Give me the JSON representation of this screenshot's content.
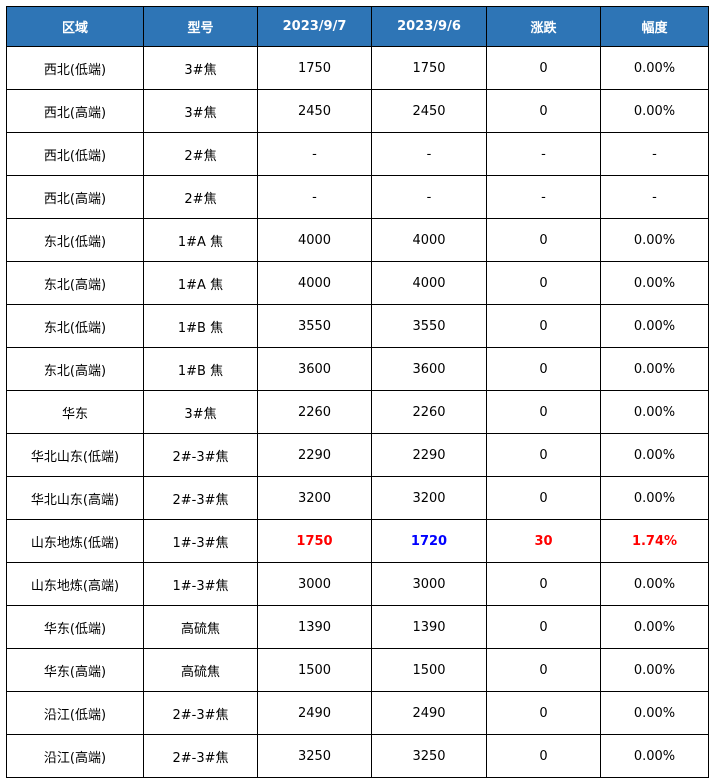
{
  "colors": {
    "header_bg": "#2E75B6",
    "up": "#ff0000",
    "prev": "#0000ff"
  },
  "headers": [
    "区域",
    "型号",
    "2023/9/7",
    "2023/9/6",
    "涨跌",
    "幅度"
  ],
  "rows": [
    {
      "cells": [
        "西北(低端)",
        "3#焦",
        "1750",
        "1750",
        "0",
        "0.00%"
      ]
    },
    {
      "cells": [
        "西北(高端)",
        "3#焦",
        "2450",
        "2450",
        "0",
        "0.00%"
      ]
    },
    {
      "cells": [
        "西北(低端)",
        "2#焦",
        "-",
        "-",
        "-",
        "-"
      ]
    },
    {
      "cells": [
        "西北(高端)",
        "2#焦",
        "-",
        "-",
        "-",
        "-"
      ]
    },
    {
      "cells": [
        "东北(低端)",
        "1#A 焦",
        "4000",
        "4000",
        "0",
        "0.00%"
      ]
    },
    {
      "cells": [
        "东北(高端)",
        "1#A 焦",
        "4000",
        "4000",
        "0",
        "0.00%"
      ]
    },
    {
      "cells": [
        "东北(低端)",
        "1#B 焦",
        "3550",
        "3550",
        "0",
        "0.00%"
      ]
    },
    {
      "cells": [
        "东北(高端)",
        "1#B 焦",
        "3600",
        "3600",
        "0",
        "0.00%"
      ]
    },
    {
      "cells": [
        "华东",
        "3#焦",
        "2260",
        "2260",
        "0",
        "0.00%"
      ]
    },
    {
      "cells": [
        "华北山东(低端)",
        "2#-3#焦",
        "2290",
        "2290",
        "0",
        "0.00%"
      ]
    },
    {
      "cells": [
        "华北山东(高端)",
        "2#-3#焦",
        "3200",
        "3200",
        "0",
        "0.00%"
      ]
    },
    {
      "cells": [
        "山东地炼(低端)",
        "1#-3#焦",
        "1750",
        "1720",
        "30",
        "1.74%"
      ],
      "highlight": true
    },
    {
      "cells": [
        "山东地炼(高端)",
        "1#-3#焦",
        "3000",
        "3000",
        "0",
        "0.00%"
      ]
    },
    {
      "cells": [
        "华东(低端)",
        "高硫焦",
        "1390",
        "1390",
        "0",
        "0.00%"
      ]
    },
    {
      "cells": [
        "华东(高端)",
        "高硫焦",
        "1500",
        "1500",
        "0",
        "0.00%"
      ]
    },
    {
      "cells": [
        "沿江(低端)",
        "2#-3#焦",
        "2490",
        "2490",
        "0",
        "0.00%"
      ]
    },
    {
      "cells": [
        "沿江(高端)",
        "2#-3#焦",
        "3250",
        "3250",
        "0",
        "0.00%"
      ]
    }
  ]
}
